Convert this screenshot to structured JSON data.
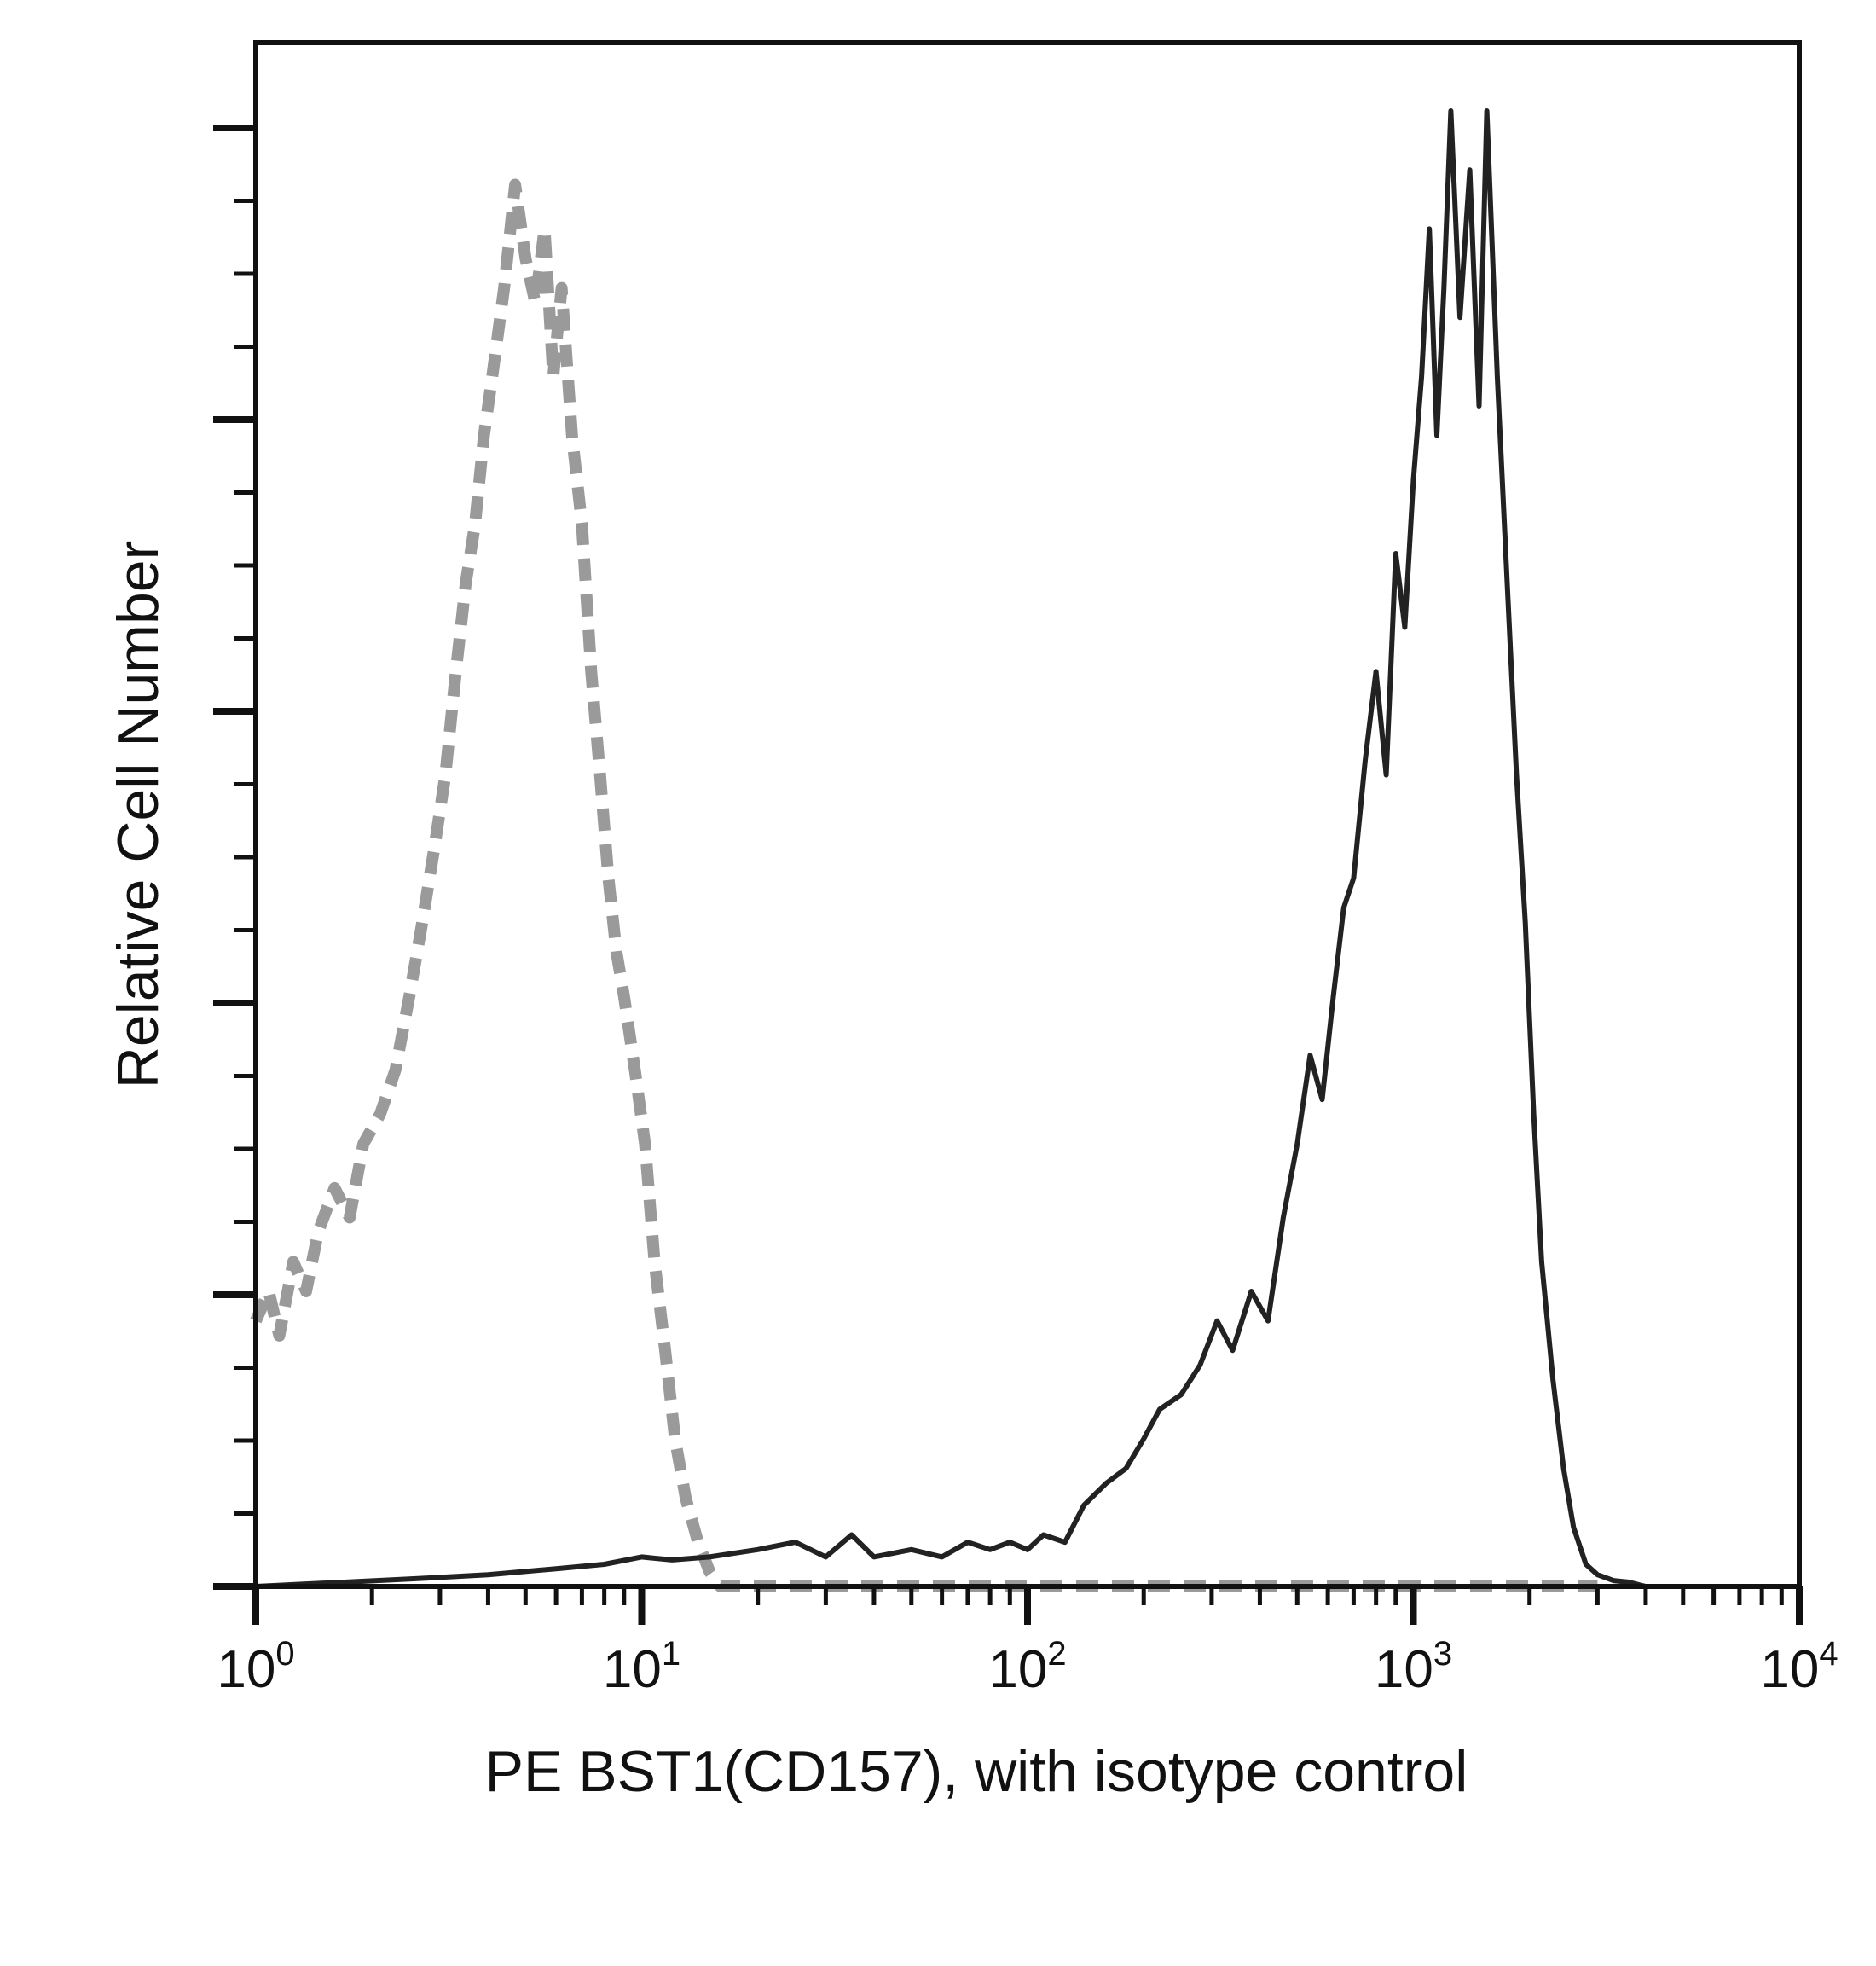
{
  "chart_data": {
    "type": "line",
    "title": "",
    "xlabel": "PE BST1(CD157), with isotype control",
    "ylabel": "Relative Cell Number",
    "x_scale": "log",
    "xlim": [
      1,
      10000
    ],
    "ylim": [
      0,
      1
    ],
    "grid": false,
    "legend": "none",
    "x_ticks": [
      {
        "base": "10",
        "exp": "0",
        "value": 1
      },
      {
        "base": "10",
        "exp": "1",
        "value": 10
      },
      {
        "base": "10",
        "exp": "2",
        "value": 100
      },
      {
        "base": "10",
        "exp": "3",
        "value": 1000
      },
      {
        "base": "10",
        "exp": "4",
        "value": 10000
      }
    ],
    "series": [
      {
        "style": "dashed",
        "color": "#9a9a9a",
        "points": [
          [
            1.0,
            0.18
          ],
          [
            1.08,
            0.2
          ],
          [
            1.15,
            0.17
          ],
          [
            1.25,
            0.22
          ],
          [
            1.35,
            0.2
          ],
          [
            1.45,
            0.24
          ],
          [
            1.6,
            0.27
          ],
          [
            1.75,
            0.25
          ],
          [
            1.9,
            0.3
          ],
          [
            2.1,
            0.32
          ],
          [
            2.3,
            0.35
          ],
          [
            2.5,
            0.4
          ],
          [
            2.7,
            0.45
          ],
          [
            2.9,
            0.5
          ],
          [
            3.1,
            0.55
          ],
          [
            3.3,
            0.62
          ],
          [
            3.5,
            0.68
          ],
          [
            3.7,
            0.72
          ],
          [
            3.9,
            0.78
          ],
          [
            4.1,
            0.82
          ],
          [
            4.4,
            0.88
          ],
          [
            4.7,
            0.95
          ],
          [
            5.0,
            0.9
          ],
          [
            5.3,
            0.87
          ],
          [
            5.6,
            0.92
          ],
          [
            5.9,
            0.82
          ],
          [
            6.2,
            0.88
          ],
          [
            6.6,
            0.78
          ],
          [
            7.0,
            0.72
          ],
          [
            7.4,
            0.62
          ],
          [
            7.8,
            0.55
          ],
          [
            8.2,
            0.48
          ],
          [
            8.6,
            0.43
          ],
          [
            9.0,
            0.4
          ],
          [
            9.6,
            0.35
          ],
          [
            10.2,
            0.3
          ],
          [
            10.8,
            0.22
          ],
          [
            11.5,
            0.16
          ],
          [
            12.2,
            0.1
          ],
          [
            13.0,
            0.06
          ],
          [
            14.0,
            0.03
          ],
          [
            15.0,
            0.01
          ],
          [
            16.0,
            0.0
          ],
          [
            20.0,
            0.0
          ],
          [
            50.0,
            0.0
          ],
          [
            100.0,
            0.0
          ],
          [
            200.0,
            0.0
          ],
          [
            500.0,
            0.0
          ],
          [
            1000.0,
            0.0
          ],
          [
            3000.0,
            0.0
          ]
        ]
      },
      {
        "style": "solid",
        "color": "#222222",
        "points": [
          [
            1.0,
            0.0
          ],
          [
            2.5,
            0.005
          ],
          [
            4.0,
            0.008
          ],
          [
            6.0,
            0.012
          ],
          [
            8.0,
            0.015
          ],
          [
            10.0,
            0.02
          ],
          [
            12.0,
            0.018
          ],
          [
            15.0,
            0.02
          ],
          [
            20.0,
            0.025
          ],
          [
            25.0,
            0.03
          ],
          [
            30.0,
            0.02
          ],
          [
            35.0,
            0.035
          ],
          [
            40.0,
            0.02
          ],
          [
            50.0,
            0.025
          ],
          [
            60.0,
            0.02
          ],
          [
            70.0,
            0.03
          ],
          [
            80.0,
            0.025
          ],
          [
            90.0,
            0.03
          ],
          [
            100.0,
            0.025
          ],
          [
            110.0,
            0.035
          ],
          [
            125.0,
            0.03
          ],
          [
            140.0,
            0.055
          ],
          [
            160.0,
            0.07
          ],
          [
            180.0,
            0.08
          ],
          [
            200.0,
            0.1
          ],
          [
            220.0,
            0.12
          ],
          [
            250.0,
            0.13
          ],
          [
            280.0,
            0.15
          ],
          [
            310.0,
            0.18
          ],
          [
            340.0,
            0.16
          ],
          [
            380.0,
            0.2
          ],
          [
            420.0,
            0.18
          ],
          [
            460.0,
            0.25
          ],
          [
            500.0,
            0.3
          ],
          [
            540.0,
            0.36
          ],
          [
            580.0,
            0.33
          ],
          [
            620.0,
            0.4
          ],
          [
            660.0,
            0.46
          ],
          [
            700.0,
            0.48
          ],
          [
            750.0,
            0.56
          ],
          [
            800.0,
            0.62
          ],
          [
            850.0,
            0.55
          ],
          [
            900.0,
            0.7
          ],
          [
            950.0,
            0.65
          ],
          [
            1000.0,
            0.75
          ],
          [
            1050.0,
            0.82
          ],
          [
            1100.0,
            0.92
          ],
          [
            1150.0,
            0.78
          ],
          [
            1200.0,
            0.88
          ],
          [
            1250.0,
            1.0
          ],
          [
            1320.0,
            0.86
          ],
          [
            1400.0,
            0.96
          ],
          [
            1480.0,
            0.8
          ],
          [
            1550.0,
            1.0
          ],
          [
            1650.0,
            0.82
          ],
          [
            1750.0,
            0.68
          ],
          [
            1850.0,
            0.55
          ],
          [
            1950.0,
            0.45
          ],
          [
            2050.0,
            0.32
          ],
          [
            2150.0,
            0.22
          ],
          [
            2300.0,
            0.14
          ],
          [
            2450.0,
            0.08
          ],
          [
            2600.0,
            0.04
          ],
          [
            2800.0,
            0.015
          ],
          [
            3000.0,
            0.008
          ],
          [
            3300.0,
            0.004
          ],
          [
            3600.0,
            0.003
          ],
          [
            4000.0,
            0.0
          ],
          [
            6000.0,
            0.0
          ],
          [
            10000.0,
            0.0
          ]
        ]
      }
    ]
  }
}
